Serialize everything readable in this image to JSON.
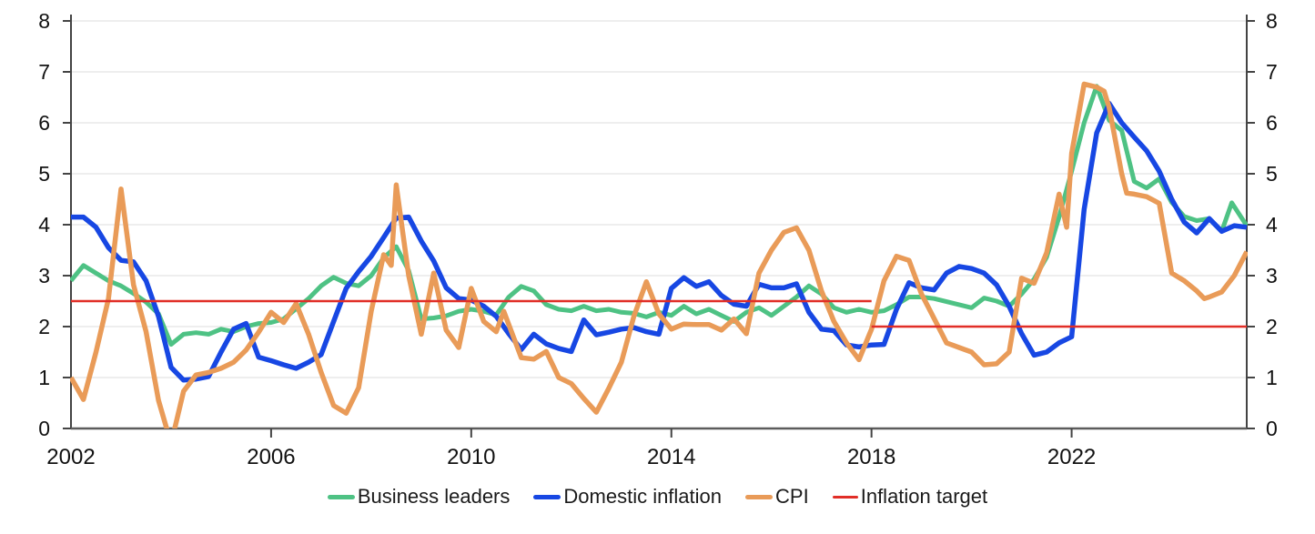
{
  "chart_data": {
    "type": "line",
    "title": "",
    "xlabel": "",
    "ylabel": "",
    "x_domain": [
      2002,
      2025.5
    ],
    "y_domain": [
      0,
      8
    ],
    "y_ticks": [
      0,
      1,
      2,
      3,
      4,
      5,
      6,
      7,
      8
    ],
    "y_tick_labels": [
      "0",
      "1",
      "2",
      "3",
      "4",
      "5",
      "6",
      "7",
      "8"
    ],
    "x_ticks": [
      2002,
      2006,
      2010,
      2014,
      2018,
      2022
    ],
    "x_tick_labels": [
      "2002",
      "2006",
      "2010",
      "2014",
      "2018",
      "2022"
    ],
    "grid": "horizontal",
    "grid_color": "#e3e3e3",
    "axis_color": "#444444",
    "legend_position": "bottom-center",
    "series": [
      {
        "name": "Business leaders",
        "color": "#4ec284",
        "width": 5,
        "points": [
          [
            2002.0,
            2.9
          ],
          [
            2002.25,
            3.2
          ],
          [
            2002.5,
            3.05
          ],
          [
            2002.75,
            2.9
          ],
          [
            2003.0,
            2.8
          ],
          [
            2003.25,
            2.65
          ],
          [
            2003.5,
            2.48
          ],
          [
            2003.75,
            2.25
          ],
          [
            2004.0,
            1.65
          ],
          [
            2004.25,
            1.85
          ],
          [
            2004.5,
            1.88
          ],
          [
            2004.75,
            1.85
          ],
          [
            2005.0,
            1.95
          ],
          [
            2005.25,
            1.9
          ],
          [
            2005.5,
            2.0
          ],
          [
            2005.75,
            2.06
          ],
          [
            2006.0,
            2.08
          ],
          [
            2006.25,
            2.15
          ],
          [
            2006.5,
            2.35
          ],
          [
            2006.75,
            2.55
          ],
          [
            2007.0,
            2.8
          ],
          [
            2007.25,
            2.97
          ],
          [
            2007.5,
            2.85
          ],
          [
            2007.75,
            2.8
          ],
          [
            2008.0,
            3.0
          ],
          [
            2008.25,
            3.35
          ],
          [
            2008.5,
            3.57
          ],
          [
            2008.75,
            3.1
          ],
          [
            2009.0,
            2.15
          ],
          [
            2009.25,
            2.17
          ],
          [
            2009.5,
            2.21
          ],
          [
            2009.75,
            2.3
          ],
          [
            2010.0,
            2.34
          ],
          [
            2010.25,
            2.3
          ],
          [
            2010.5,
            2.23
          ],
          [
            2010.75,
            2.58
          ],
          [
            2011.0,
            2.79
          ],
          [
            2011.25,
            2.7
          ],
          [
            2011.5,
            2.43
          ],
          [
            2011.75,
            2.34
          ],
          [
            2012.0,
            2.31
          ],
          [
            2012.25,
            2.4
          ],
          [
            2012.5,
            2.31
          ],
          [
            2012.75,
            2.34
          ],
          [
            2013.0,
            2.28
          ],
          [
            2013.25,
            2.26
          ],
          [
            2013.5,
            2.19
          ],
          [
            2013.75,
            2.28
          ],
          [
            2014.0,
            2.22
          ],
          [
            2014.25,
            2.4
          ],
          [
            2014.5,
            2.25
          ],
          [
            2014.75,
            2.34
          ],
          [
            2015.0,
            2.22
          ],
          [
            2015.25,
            2.1
          ],
          [
            2015.5,
            2.28
          ],
          [
            2015.75,
            2.37
          ],
          [
            2016.0,
            2.22
          ],
          [
            2016.25,
            2.4
          ],
          [
            2016.5,
            2.58
          ],
          [
            2016.75,
            2.8
          ],
          [
            2017.0,
            2.64
          ],
          [
            2017.25,
            2.37
          ],
          [
            2017.5,
            2.28
          ],
          [
            2017.75,
            2.34
          ],
          [
            2018.0,
            2.28
          ],
          [
            2018.25,
            2.31
          ],
          [
            2018.5,
            2.43
          ],
          [
            2018.75,
            2.58
          ],
          [
            2019.0,
            2.58
          ],
          [
            2019.25,
            2.55
          ],
          [
            2019.5,
            2.49
          ],
          [
            2019.75,
            2.43
          ],
          [
            2020.0,
            2.37
          ],
          [
            2020.25,
            2.56
          ],
          [
            2020.5,
            2.5
          ],
          [
            2020.75,
            2.4
          ],
          [
            2021.0,
            2.64
          ],
          [
            2021.25,
            2.93
          ],
          [
            2021.5,
            3.36
          ],
          [
            2021.75,
            4.15
          ],
          [
            2022.0,
            5.05
          ],
          [
            2022.25,
            6.0
          ],
          [
            2022.5,
            6.72
          ],
          [
            2022.75,
            6.05
          ],
          [
            2023.0,
            5.85
          ],
          [
            2023.25,
            4.85
          ],
          [
            2023.5,
            4.72
          ],
          [
            2023.75,
            4.9
          ],
          [
            2024.0,
            4.44
          ],
          [
            2024.25,
            4.16
          ],
          [
            2024.5,
            4.08
          ],
          [
            2024.75,
            4.12
          ],
          [
            2025.0,
            3.87
          ],
          [
            2025.2,
            4.43
          ],
          [
            2025.5,
            3.98
          ]
        ]
      },
      {
        "name": "Domestic inflation",
        "color": "#1747e3",
        "width": 5.5,
        "points": [
          [
            2002.0,
            4.15
          ],
          [
            2002.25,
            4.15
          ],
          [
            2002.5,
            3.95
          ],
          [
            2002.75,
            3.55
          ],
          [
            2003.0,
            3.3
          ],
          [
            2003.25,
            3.27
          ],
          [
            2003.5,
            2.9
          ],
          [
            2003.75,
            2.2
          ],
          [
            2004.0,
            1.2
          ],
          [
            2004.25,
            0.95
          ],
          [
            2004.5,
            0.97
          ],
          [
            2004.75,
            1.02
          ],
          [
            2005.0,
            1.5
          ],
          [
            2005.25,
            1.95
          ],
          [
            2005.5,
            2.06
          ],
          [
            2005.75,
            1.4
          ],
          [
            2006.0,
            1.33
          ],
          [
            2006.25,
            1.25
          ],
          [
            2006.5,
            1.18
          ],
          [
            2006.75,
            1.3
          ],
          [
            2007.0,
            1.45
          ],
          [
            2007.25,
            2.1
          ],
          [
            2007.5,
            2.75
          ],
          [
            2007.75,
            3.08
          ],
          [
            2008.0,
            3.38
          ],
          [
            2008.25,
            3.75
          ],
          [
            2008.5,
            4.13
          ],
          [
            2008.75,
            4.15
          ],
          [
            2009.0,
            3.68
          ],
          [
            2009.25,
            3.29
          ],
          [
            2009.5,
            2.76
          ],
          [
            2009.75,
            2.55
          ],
          [
            2010.0,
            2.52
          ],
          [
            2010.25,
            2.4
          ],
          [
            2010.5,
            2.2
          ],
          [
            2010.75,
            1.86
          ],
          [
            2011.0,
            1.55
          ],
          [
            2011.25,
            1.85
          ],
          [
            2011.5,
            1.66
          ],
          [
            2011.75,
            1.57
          ],
          [
            2012.0,
            1.51
          ],
          [
            2012.25,
            2.13
          ],
          [
            2012.5,
            1.84
          ],
          [
            2012.75,
            1.89
          ],
          [
            2013.0,
            1.95
          ],
          [
            2013.25,
            1.98
          ],
          [
            2013.5,
            1.9
          ],
          [
            2013.75,
            1.85
          ],
          [
            2014.0,
            2.75
          ],
          [
            2014.25,
            2.96
          ],
          [
            2014.5,
            2.79
          ],
          [
            2014.75,
            2.88
          ],
          [
            2015.0,
            2.61
          ],
          [
            2015.25,
            2.44
          ],
          [
            2015.5,
            2.4
          ],
          [
            2015.75,
            2.83
          ],
          [
            2016.0,
            2.76
          ],
          [
            2016.25,
            2.76
          ],
          [
            2016.5,
            2.84
          ],
          [
            2016.75,
            2.28
          ],
          [
            2017.0,
            1.95
          ],
          [
            2017.25,
            1.92
          ],
          [
            2017.5,
            1.64
          ],
          [
            2017.75,
            1.6
          ],
          [
            2018.0,
            1.64
          ],
          [
            2018.25,
            1.65
          ],
          [
            2018.5,
            2.34
          ],
          [
            2018.75,
            2.86
          ],
          [
            2019.0,
            2.76
          ],
          [
            2019.25,
            2.72
          ],
          [
            2019.5,
            3.05
          ],
          [
            2019.75,
            3.18
          ],
          [
            2020.0,
            3.14
          ],
          [
            2020.25,
            3.05
          ],
          [
            2020.5,
            2.82
          ],
          [
            2020.75,
            2.4
          ],
          [
            2021.0,
            1.86
          ],
          [
            2021.25,
            1.44
          ],
          [
            2021.5,
            1.5
          ],
          [
            2021.75,
            1.68
          ],
          [
            2022.0,
            1.8
          ],
          [
            2022.25,
            4.3
          ],
          [
            2022.5,
            5.8
          ],
          [
            2022.75,
            6.38
          ],
          [
            2023.0,
            6.0
          ],
          [
            2023.25,
            5.72
          ],
          [
            2023.5,
            5.45
          ],
          [
            2023.75,
            5.05
          ],
          [
            2024.0,
            4.5
          ],
          [
            2024.25,
            4.05
          ],
          [
            2024.5,
            3.84
          ],
          [
            2024.75,
            4.12
          ],
          [
            2025.0,
            3.87
          ],
          [
            2025.25,
            3.98
          ],
          [
            2025.5,
            3.95
          ]
        ]
      },
      {
        "name": "CPI",
        "color": "#e99b58",
        "width": 5.5,
        "points": [
          [
            2002.0,
            1.0
          ],
          [
            2002.25,
            0.57
          ],
          [
            2002.5,
            1.5
          ],
          [
            2002.75,
            2.55
          ],
          [
            2003.0,
            4.7
          ],
          [
            2003.25,
            2.82
          ],
          [
            2003.5,
            1.9
          ],
          [
            2003.75,
            0.55
          ],
          [
            2004.0,
            -0.3
          ],
          [
            2004.25,
            0.73
          ],
          [
            2004.5,
            1.05
          ],
          [
            2004.75,
            1.1
          ],
          [
            2005.0,
            1.18
          ],
          [
            2005.25,
            1.3
          ],
          [
            2005.5,
            1.54
          ],
          [
            2005.75,
            1.89
          ],
          [
            2006.0,
            2.28
          ],
          [
            2006.25,
            2.08
          ],
          [
            2006.5,
            2.45
          ],
          [
            2006.75,
            1.85
          ],
          [
            2007.0,
            1.1
          ],
          [
            2007.25,
            0.45
          ],
          [
            2007.5,
            0.3
          ],
          [
            2007.75,
            0.8
          ],
          [
            2008.0,
            2.3
          ],
          [
            2008.25,
            3.41
          ],
          [
            2008.4,
            3.2
          ],
          [
            2008.5,
            4.78
          ],
          [
            2008.75,
            3.0
          ],
          [
            2009.0,
            1.85
          ],
          [
            2009.25,
            3.05
          ],
          [
            2009.5,
            1.93
          ],
          [
            2009.75,
            1.59
          ],
          [
            2010.0,
            2.75
          ],
          [
            2010.25,
            2.1
          ],
          [
            2010.5,
            1.9
          ],
          [
            2010.65,
            2.3
          ],
          [
            2011.0,
            1.39
          ],
          [
            2011.25,
            1.36
          ],
          [
            2011.5,
            1.51
          ],
          [
            2011.75,
            1.0
          ],
          [
            2012.0,
            0.88
          ],
          [
            2012.25,
            0.59
          ],
          [
            2012.5,
            0.32
          ],
          [
            2012.75,
            0.79
          ],
          [
            2013.0,
            1.3
          ],
          [
            2013.25,
            2.2
          ],
          [
            2013.5,
            2.88
          ],
          [
            2013.75,
            2.25
          ],
          [
            2014.0,
            1.95
          ],
          [
            2014.25,
            2.05
          ],
          [
            2014.5,
            2.04
          ],
          [
            2014.75,
            2.04
          ],
          [
            2015.0,
            1.93
          ],
          [
            2015.25,
            2.15
          ],
          [
            2015.5,
            1.86
          ],
          [
            2015.75,
            3.05
          ],
          [
            2016.0,
            3.5
          ],
          [
            2016.25,
            3.85
          ],
          [
            2016.5,
            3.94
          ],
          [
            2016.75,
            3.5
          ],
          [
            2017.0,
            2.7
          ],
          [
            2017.25,
            2.1
          ],
          [
            2017.5,
            1.68
          ],
          [
            2017.75,
            1.35
          ],
          [
            2018.0,
            1.95
          ],
          [
            2018.25,
            2.9
          ],
          [
            2018.5,
            3.38
          ],
          [
            2018.75,
            3.3
          ],
          [
            2019.0,
            2.64
          ],
          [
            2019.25,
            2.16
          ],
          [
            2019.5,
            1.68
          ],
          [
            2019.75,
            1.59
          ],
          [
            2020.0,
            1.5
          ],
          [
            2020.25,
            1.25
          ],
          [
            2020.5,
            1.27
          ],
          [
            2020.75,
            1.5
          ],
          [
            2021.0,
            2.95
          ],
          [
            2021.25,
            2.85
          ],
          [
            2021.5,
            3.45
          ],
          [
            2021.75,
            4.6
          ],
          [
            2021.9,
            3.95
          ],
          [
            2022.0,
            5.4
          ],
          [
            2022.25,
            6.76
          ],
          [
            2022.5,
            6.7
          ],
          [
            2022.65,
            6.62
          ],
          [
            2022.75,
            6.3
          ],
          [
            2023.0,
            5.0
          ],
          [
            2023.1,
            4.62
          ],
          [
            2023.25,
            4.6
          ],
          [
            2023.5,
            4.55
          ],
          [
            2023.75,
            4.42
          ],
          [
            2024.0,
            3.05
          ],
          [
            2024.25,
            2.9
          ],
          [
            2024.5,
            2.7
          ],
          [
            2024.65,
            2.55
          ],
          [
            2024.75,
            2.58
          ],
          [
            2025.0,
            2.68
          ],
          [
            2025.25,
            3.0
          ],
          [
            2025.5,
            3.47
          ]
        ]
      },
      {
        "name": "Inflation target",
        "color": "#e12e27",
        "width": 2.5,
        "points": [
          [
            2002.0,
            2.5
          ],
          [
            2018.0,
            2.5
          ],
          null,
          [
            2018.0,
            2.0
          ],
          [
            2025.5,
            2.0
          ]
        ]
      }
    ]
  },
  "legend": {
    "items": [
      {
        "label": "Business leaders"
      },
      {
        "label": "Domestic inflation"
      },
      {
        "label": "CPI"
      },
      {
        "label": "Inflation target"
      }
    ]
  }
}
